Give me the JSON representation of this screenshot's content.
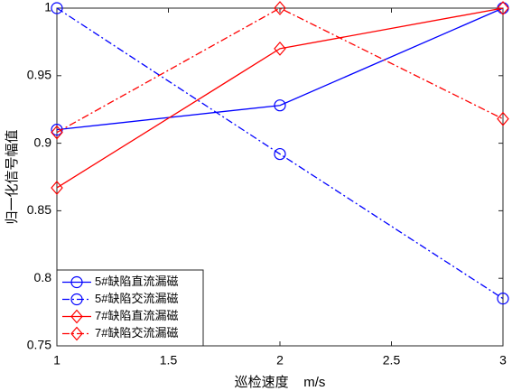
{
  "chart_data": {
    "type": "line",
    "xlabel": "巡检速度    m/s",
    "ylabel": "归一化信号幅值",
    "x": [
      1,
      2,
      3
    ],
    "xlim": [
      1,
      3
    ],
    "xticks": [
      1,
      1.5,
      2,
      2.5,
      3
    ],
    "ylim": [
      0.75,
      1
    ],
    "yticks": [
      0.75,
      0.8,
      0.85,
      0.9,
      0.95,
      1
    ],
    "grid": false,
    "legend": "lower left",
    "series": [
      {
        "name": "5#缺陷直流漏磁",
        "color": "#0000ff",
        "linestyle": "solid",
        "marker": "circle",
        "values": [
          0.91,
          0.928,
          1
        ]
      },
      {
        "name": "5#缺陷交流漏磁",
        "color": "#0000ff",
        "linestyle": "dashdot",
        "marker": "circle",
        "values": [
          1,
          0.892,
          0.785
        ]
      },
      {
        "name": "7#缺陷直流漏磁",
        "color": "#ff0000",
        "linestyle": "solid",
        "marker": "diamond",
        "values": [
          0.867,
          0.97,
          1
        ]
      },
      {
        "name": "7#缺陷交流漏磁",
        "color": "#ff0000",
        "linestyle": "dashdot",
        "marker": "diamond",
        "values": [
          0.908,
          1,
          0.918
        ]
      }
    ]
  }
}
